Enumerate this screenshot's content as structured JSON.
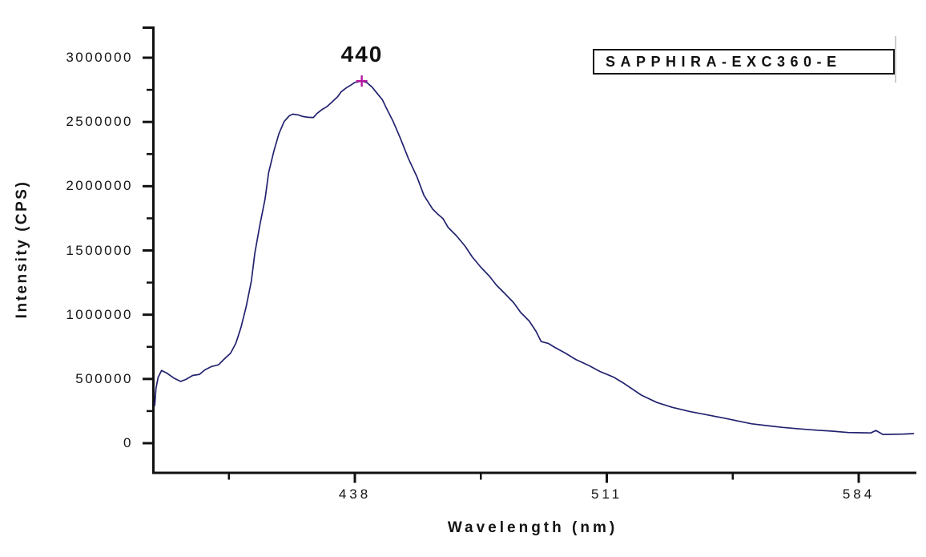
{
  "figure": {
    "peak_annotation": "440",
    "legend_label": "SAPPHIRA-EXC360-E"
  },
  "chart_data": {
    "type": "line",
    "title": "",
    "xlabel": "Wavelength (nm)",
    "ylabel": "Intensity (CPS)",
    "xlim": [
      378.5,
      601
    ],
    "ylim": [
      0,
      3250000
    ],
    "grid": false,
    "legend_position": "top-right",
    "x_major_ticks": [
      438,
      511,
      584
    ],
    "x_minor_ticks": [
      401.5,
      474.5,
      547.5
    ],
    "y_major_ticks": [
      0,
      500000,
      1000000,
      1500000,
      2000000,
      2500000,
      3000000
    ],
    "y_minor_ticks": [
      250000,
      750000,
      1250000,
      1750000,
      2250000,
      2750000,
      3250000
    ],
    "colors": {
      "axis": "#111111",
      "text": "#141414",
      "curve": "#222270",
      "marker": "#b5179e"
    },
    "peak_marker": {
      "x": 440,
      "y": 2818000,
      "shape": "plus",
      "color": "#b5179e",
      "label": "440"
    },
    "series": [
      {
        "name": "SAPPHIRA-EXC360-E",
        "color": "#222270",
        "points": [
          [
            380,
            290000
          ],
          [
            380.4,
            430000
          ],
          [
            381,
            512000
          ],
          [
            382,
            566000
          ],
          [
            383.5,
            546000
          ],
          [
            385.5,
            508000
          ],
          [
            387.5,
            481000
          ],
          [
            389,
            496000
          ],
          [
            391,
            527000
          ],
          [
            393,
            536000
          ],
          [
            394.5,
            570000
          ],
          [
            396.5,
            597000
          ],
          [
            398.5,
            610000
          ],
          [
            400,
            651000
          ],
          [
            402,
            701000
          ],
          [
            403.5,
            777000
          ],
          [
            405,
            900000
          ],
          [
            406.5,
            1062000
          ],
          [
            408,
            1262000
          ],
          [
            409,
            1478000
          ],
          [
            410.5,
            1700000
          ],
          [
            412,
            1904000
          ],
          [
            413,
            2104000
          ],
          [
            414.5,
            2271000
          ],
          [
            416,
            2409000
          ],
          [
            417.5,
            2503000
          ],
          [
            419,
            2548000
          ],
          [
            420,
            2561000
          ],
          [
            421.5,
            2555000
          ],
          [
            423,
            2542000
          ],
          [
            424.5,
            2536000
          ],
          [
            426,
            2535000
          ],
          [
            427,
            2565000
          ],
          [
            428.5,
            2597000
          ],
          [
            430,
            2621000
          ],
          [
            431.5,
            2659000
          ],
          [
            433,
            2696000
          ],
          [
            434,
            2734000
          ],
          [
            435.5,
            2765000
          ],
          [
            437,
            2790000
          ],
          [
            438,
            2808000
          ],
          [
            440,
            2818000
          ],
          [
            441.5,
            2806000
          ],
          [
            443,
            2771000
          ],
          [
            444.5,
            2721000
          ],
          [
            446,
            2671000
          ],
          [
            447,
            2615000
          ],
          [
            449,
            2509000
          ],
          [
            451,
            2385000
          ],
          [
            453.5,
            2216000
          ],
          [
            456,
            2073000
          ],
          [
            458,
            1929000
          ],
          [
            460.5,
            1824000
          ],
          [
            462,
            1783000
          ],
          [
            463.5,
            1749000
          ],
          [
            465,
            1680000
          ],
          [
            467.5,
            1612000
          ],
          [
            470,
            1531000
          ],
          [
            472,
            1450000
          ],
          [
            474.5,
            1369000
          ],
          [
            477,
            1300000
          ],
          [
            479,
            1231000
          ],
          [
            481.5,
            1163000
          ],
          [
            484,
            1094000
          ],
          [
            486,
            1019000
          ],
          [
            488.5,
            951000
          ],
          [
            490.5,
            870000
          ],
          [
            492,
            791000
          ],
          [
            494,
            777000
          ],
          [
            496,
            745000
          ],
          [
            499,
            701000
          ],
          [
            502,
            652000
          ],
          [
            506,
            602000
          ],
          [
            509,
            558000
          ],
          [
            513,
            514000
          ],
          [
            516,
            465000
          ],
          [
            521,
            374000
          ],
          [
            525.5,
            317000
          ],
          [
            530,
            279000
          ],
          [
            535,
            247000
          ],
          [
            540,
            221000
          ],
          [
            545,
            195000
          ],
          [
            549,
            173000
          ],
          [
            553,
            151000
          ],
          [
            558,
            135000
          ],
          [
            562,
            123000
          ],
          [
            567,
            111000
          ],
          [
            572,
            101000
          ],
          [
            576,
            94000
          ],
          [
            581,
            83000
          ],
          [
            585,
            81000
          ],
          [
            587.5,
            80000
          ],
          [
            589,
            99000
          ],
          [
            591,
            68000
          ],
          [
            594,
            69000
          ],
          [
            597,
            71000
          ],
          [
            600,
            75000
          ]
        ]
      }
    ]
  }
}
